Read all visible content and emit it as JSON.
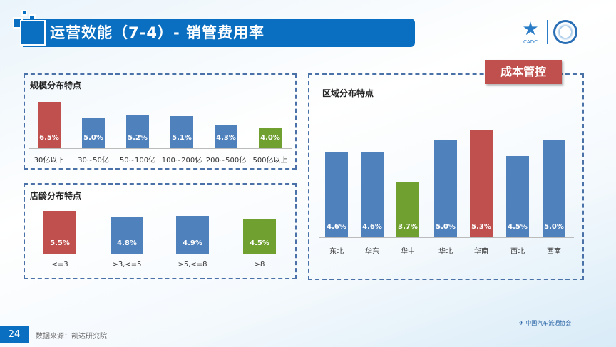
{
  "header": {
    "title": "运营效能（7-4）- 销管费用率",
    "logo_left": "CADC",
    "logo_right": "association seal"
  },
  "ribbon": "成本管控",
  "colors": {
    "blue": "#4f81bd",
    "red": "#c0504d",
    "green": "#70a030",
    "header": "#0a6fc0"
  },
  "footer": {
    "page": "24",
    "source": "数据来源：凯达研究院",
    "association": "中国汽车流通协会"
  },
  "chart_data": [
    {
      "type": "bar",
      "title": "规模分布特点",
      "categories": [
        "30亿以下",
        "30~50亿",
        "50~100亿",
        "100~200亿",
        "200~500亿",
        "500亿以上"
      ],
      "values": [
        6.5,
        5.0,
        5.2,
        5.1,
        4.3,
        4.0
      ],
      "labels": [
        "6.5%",
        "5.0%",
        "5.2%",
        "5.1%",
        "4.3%",
        "4.0%"
      ],
      "colors": [
        "red",
        "blue",
        "blue",
        "blue",
        "blue",
        "green"
      ],
      "ylim": [
        2,
        7
      ],
      "grid": false
    },
    {
      "type": "bar",
      "title": "店龄分布特点",
      "categories": [
        "<=3",
        ">3,<=5",
        ">5,<=8",
        ">8"
      ],
      "values": [
        5.5,
        4.8,
        4.9,
        4.5
      ],
      "labels": [
        "5.5%",
        "4.8%",
        "4.9%",
        "4.5%"
      ],
      "colors": [
        "red",
        "blue",
        "blue",
        "green"
      ],
      "ylim": [
        0,
        6
      ],
      "grid": false
    },
    {
      "type": "bar",
      "title": "区域分布特点",
      "categories": [
        "东北",
        "华东",
        "华中",
        "华北",
        "华南",
        "西北",
        "西南"
      ],
      "values": [
        4.6,
        4.6,
        3.7,
        5.0,
        5.3,
        4.5,
        5.0
      ],
      "labels": [
        "4.6%",
        "4.6%",
        "3.7%",
        "5.0%",
        "5.3%",
        "4.5%",
        "5.0%"
      ],
      "colors": [
        "blue",
        "blue",
        "green",
        "blue",
        "red",
        "blue",
        "blue"
      ],
      "ylim": [
        2,
        6
      ],
      "grid": false
    }
  ]
}
